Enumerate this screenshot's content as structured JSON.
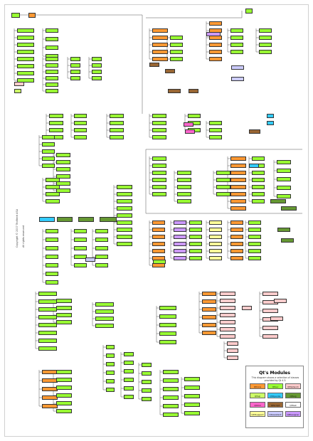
{
  "copyright": [
    "Copyright © 2007 Trolltech ASA",
    "All rights reserved"
  ],
  "legend": {
    "title": "Qt's Modules",
    "subtitle": "This diagram shows a selection of classes provided by Qt 4.3.",
    "modules": [
      {
        "label": "QtCore",
        "color": "#ff9933"
      },
      {
        "label": "QtGui",
        "color": "#99ff33"
      },
      {
        "label": "QtNetwork",
        "color": "#ffcccc"
      },
      {
        "label": "QtSql",
        "color": "#ccff66"
      },
      {
        "label": "QtOpenGL",
        "color": "#33ccff"
      },
      {
        "label": "QtSvg",
        "color": "#669933"
      },
      {
        "label": "QtXml",
        "color": "#ff66cc"
      },
      {
        "label": "QtScript",
        "color": "#996633"
      },
      {
        "label": "QtTest",
        "color": "#ffffff"
      },
      {
        "label": "Qt3Support",
        "color": "#ffff99"
      },
      {
        "label": "QtAssistant",
        "color": "#ccccff"
      },
      {
        "label": "QtDesigner",
        "color": "#cc99ff"
      }
    ]
  }
}
